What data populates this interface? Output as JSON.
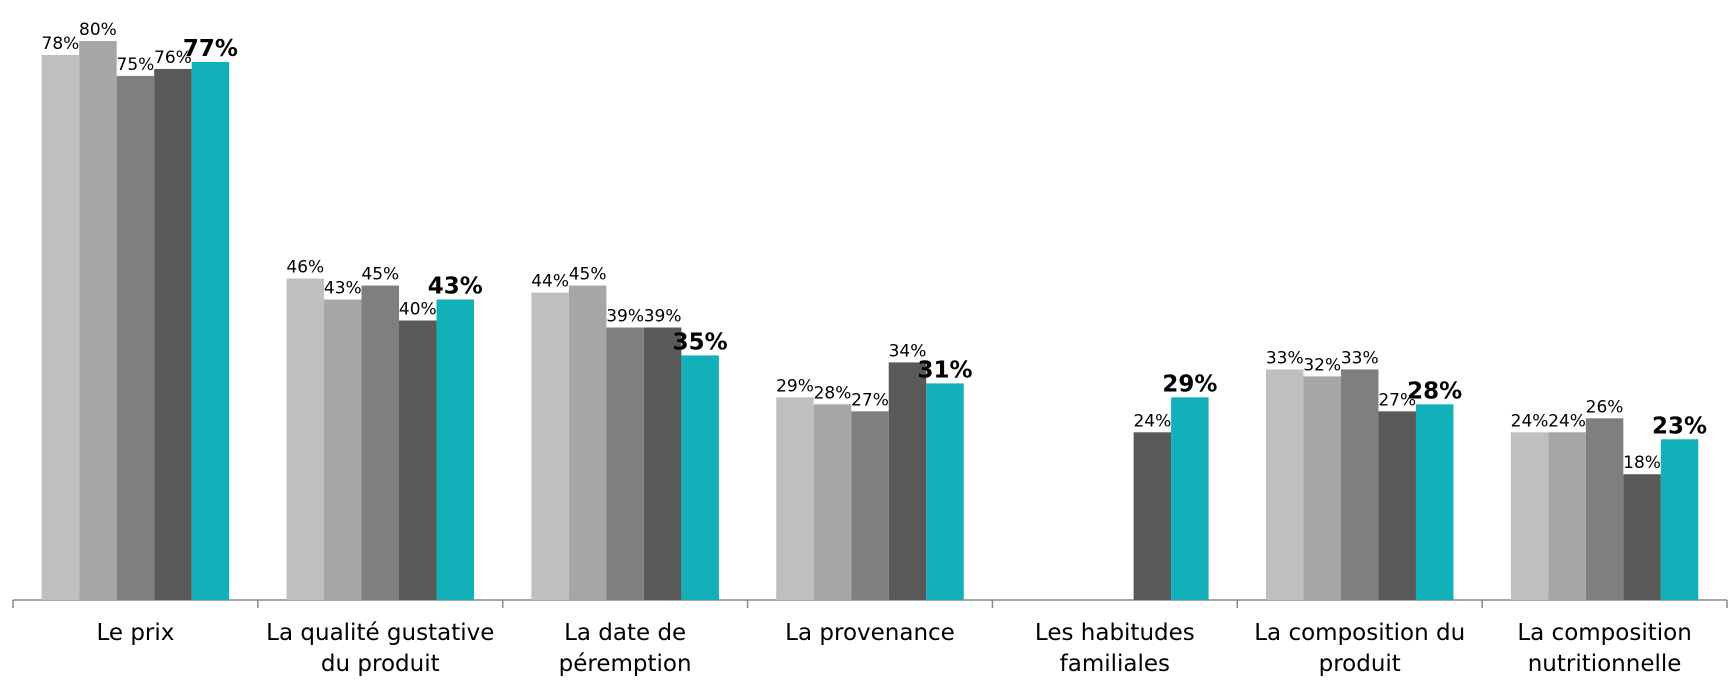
{
  "chart_data": {
    "type": "bar",
    "categories": [
      "Le prix",
      "La qualité gustative\ndu produit",
      "La date de\npéremption",
      "La provenance",
      "Les habitudes\nfamiliales",
      "La composition du\nproduit",
      "La composition\nnutritionnelle"
    ],
    "series": [
      {
        "color": "#bfbfbf",
        "values": [
          78,
          46,
          44,
          29,
          null,
          33,
          24
        ],
        "value_labels": [
          "78%",
          "46%",
          "44%",
          "29%",
          null,
          "33%",
          "24%"
        ]
      },
      {
        "color": "#a6a6a6",
        "values": [
          80,
          43,
          45,
          28,
          null,
          32,
          24
        ],
        "value_labels": [
          "80%",
          "43%",
          "45%",
          "28%",
          null,
          "32%",
          "24%"
        ]
      },
      {
        "color": "#7f7f7f",
        "values": [
          75,
          45,
          39,
          27,
          null,
          33,
          26
        ],
        "value_labels": [
          "75%",
          "45%",
          "39%",
          "27%",
          null,
          "33%",
          "26%"
        ]
      },
      {
        "color": "#595959",
        "values": [
          76,
          40,
          39,
          34,
          24,
          27,
          18
        ],
        "value_labels": [
          "76%",
          "40%",
          "39%",
          "34%",
          "24%",
          "27%",
          "18%"
        ]
      },
      {
        "color": "#12b0b8",
        "values": [
          77,
          43,
          35,
          31,
          29,
          28,
          23
        ],
        "value_labels": [
          "77%",
          "43%",
          "35%",
          "31%",
          "29%",
          "28%",
          "23%"
        ],
        "bold_labels": true
      }
    ],
    "ylim": [
      0,
      80
    ]
  }
}
